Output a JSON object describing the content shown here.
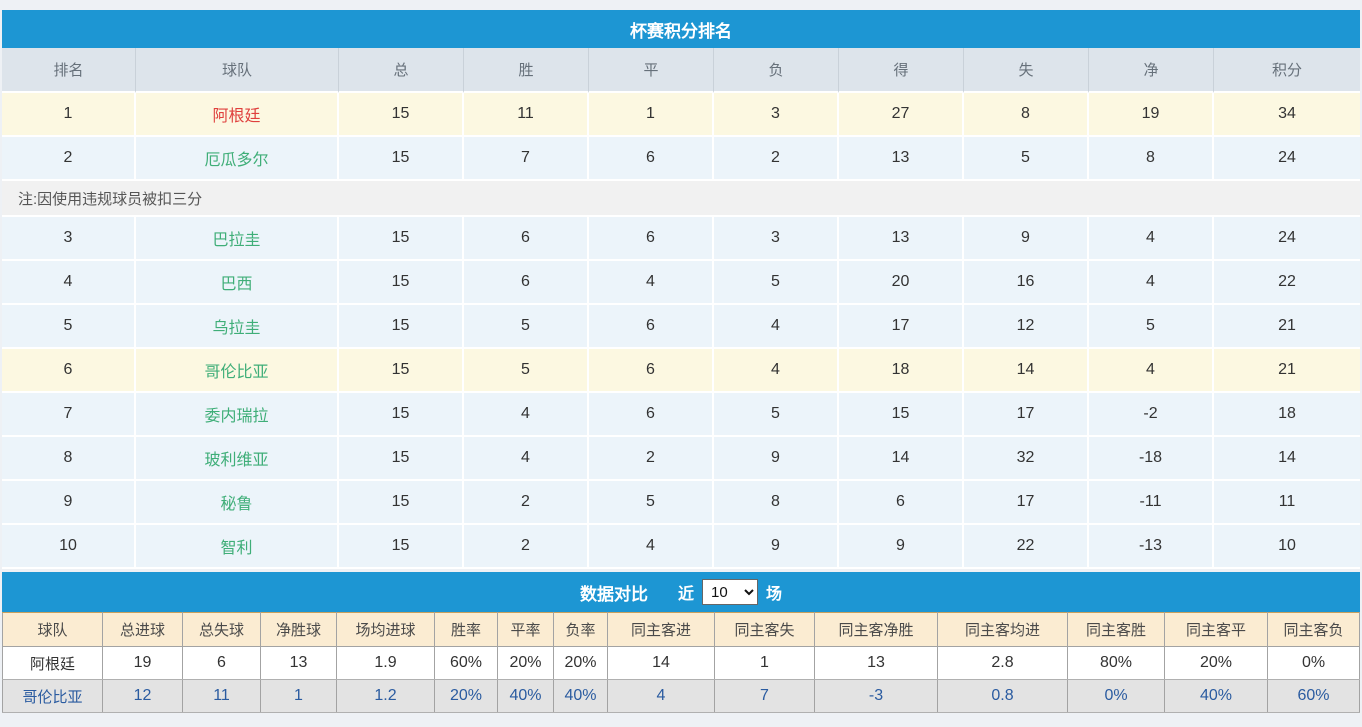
{
  "standings": {
    "title": "杯赛积分排名",
    "columns": [
      "排名",
      "球队",
      "总",
      "胜",
      "平",
      "负",
      "得",
      "失",
      "净",
      "积分"
    ],
    "rows": [
      {
        "type": "team",
        "cells": [
          "1",
          "阿根廷",
          "15",
          "11",
          "1",
          "3",
          "27",
          "8",
          "19",
          "34"
        ],
        "row_style": "cream",
        "team_style": "red"
      },
      {
        "type": "team",
        "cells": [
          "2",
          "厄瓜多尔",
          "15",
          "7",
          "6",
          "2",
          "13",
          "5",
          "8",
          "24"
        ],
        "row_style": "blue",
        "team_style": "green"
      },
      {
        "type": "note",
        "text": "注:因使用违规球员被扣三分"
      },
      {
        "type": "team",
        "cells": [
          "3",
          "巴拉圭",
          "15",
          "6",
          "6",
          "3",
          "13",
          "9",
          "4",
          "24"
        ],
        "row_style": "blue",
        "team_style": "green"
      },
      {
        "type": "team",
        "cells": [
          "4",
          "巴西",
          "15",
          "6",
          "4",
          "5",
          "20",
          "16",
          "4",
          "22"
        ],
        "row_style": "blue",
        "team_style": "green"
      },
      {
        "type": "team",
        "cells": [
          "5",
          "乌拉圭",
          "15",
          "5",
          "6",
          "4",
          "17",
          "12",
          "5",
          "21"
        ],
        "row_style": "blue",
        "team_style": "green"
      },
      {
        "type": "team",
        "cells": [
          "6",
          "哥伦比亚",
          "15",
          "5",
          "6",
          "4",
          "18",
          "14",
          "4",
          "21"
        ],
        "row_style": "cream",
        "team_style": "green"
      },
      {
        "type": "team",
        "cells": [
          "7",
          "委内瑞拉",
          "15",
          "4",
          "6",
          "5",
          "15",
          "17",
          "-2",
          "18"
        ],
        "row_style": "blue",
        "team_style": "green"
      },
      {
        "type": "team",
        "cells": [
          "8",
          "玻利维亚",
          "15",
          "4",
          "2",
          "9",
          "14",
          "32",
          "-18",
          "14"
        ],
        "row_style": "blue",
        "team_style": "green"
      },
      {
        "type": "team",
        "cells": [
          "9",
          "秘鲁",
          "15",
          "2",
          "5",
          "8",
          "6",
          "17",
          "-11",
          "11"
        ],
        "row_style": "blue",
        "team_style": "green"
      },
      {
        "type": "team",
        "cells": [
          "10",
          "智利",
          "15",
          "2",
          "4",
          "9",
          "9",
          "22",
          "-13",
          "10"
        ],
        "row_style": "blue",
        "team_style": "green"
      }
    ]
  },
  "comparison": {
    "title": "数据对比",
    "recent_label": "近",
    "matches_label": "场",
    "recent_select": {
      "value": "10",
      "options": [
        "10"
      ]
    },
    "columns": [
      "球队",
      "总进球",
      "总失球",
      "净胜球",
      "场均进球",
      "胜率",
      "平率",
      "负率",
      "同主客进",
      "同主客失",
      "同主客净胜",
      "同主客均进",
      "同主客胜",
      "同主客平",
      "同主客负"
    ],
    "rows": [
      {
        "cells": [
          "阿根廷",
          "19",
          "6",
          "13",
          "1.9",
          "60%",
          "20%",
          "20%",
          "14",
          "1",
          "13",
          "2.8",
          "80%",
          "20%",
          "0%"
        ],
        "row_style": "white"
      },
      {
        "cells": [
          "哥伦比亚",
          "12",
          "11",
          "1",
          "1.2",
          "20%",
          "40%",
          "40%",
          "4",
          "7",
          "-3",
          "0.8",
          "0%",
          "40%",
          "60%"
        ],
        "row_style": "gray"
      }
    ]
  },
  "colors": {
    "accent_blue": "#1d96d3",
    "team_red": "#df403d",
    "team_green": "#3fae78",
    "highlight_row_bg": "#fcf8e1",
    "normal_row_bg": "#ecf4fa",
    "standings_header_bg": "#dde4eb",
    "note_row_bg": "#f1f1f1",
    "comparison_header_bg": "#fbecd2",
    "comparison_row2_bg": "#e3e3e3",
    "comparison_row2_text": "#2a5ba0"
  }
}
